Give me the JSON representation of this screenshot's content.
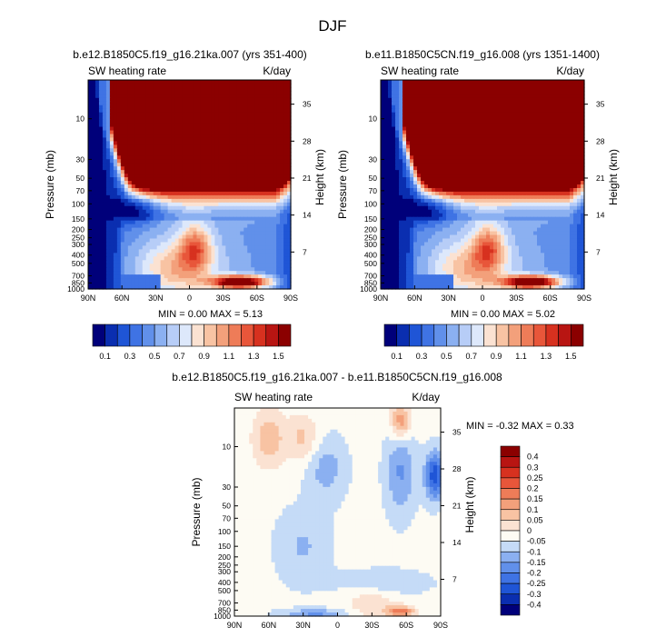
{
  "page_title": "DJF",
  "colors": {
    "palette": [
      "#00007a",
      "#0a2eb0",
      "#1f55d6",
      "#3f73e4",
      "#6190ea",
      "#8bb0f1",
      "#b7cdf7",
      "#dde8fb",
      "#fbe2d2",
      "#f8c3a3",
      "#f3a07b",
      "#ee7c58",
      "#e8563a",
      "#d7311f",
      "#b81512",
      "#8b0000"
    ]
  },
  "chart_data": [
    {
      "type": "heatmap",
      "title": "b.e12.B1850C5.f19_g16.21ka.007 (yrs 351-400)",
      "variable_label": "SW heating rate",
      "units_label": "K/day",
      "ylabel": "Pressure (mb)",
      "ylabel_right": "Height (km)",
      "xlabel": "",
      "x_ticks": [
        "90N",
        "60N",
        "30N",
        "0",
        "30S",
        "60S",
        "90S"
      ],
      "y_ticks": [
        "10",
        "30",
        "50",
        "70",
        "100",
        "150",
        "200",
        "250",
        "300",
        "400",
        "500",
        "700",
        "850",
        "1000"
      ],
      "y_ticks_right": [
        "35",
        "28",
        "21",
        "14",
        "7"
      ],
      "x_range": [
        "90N",
        "90S"
      ],
      "y_range_mb": [
        3.5,
        1000
      ],
      "y_scale": "log",
      "stats_text": "MIN =   0.00   MAX =   5.13",
      "min": 0.0,
      "max": 5.13,
      "features": {
        "stratopause_shift": 0,
        "lower_max_shift": 0,
        "variant": 0
      },
      "colorbar": {
        "orientation": "horizontal",
        "labels": [
          "0.1",
          "0.3",
          "0.5",
          "0.7",
          "0.9",
          "1.1",
          "1.3",
          "1.5"
        ],
        "levels": [
          0.1,
          0.2,
          0.3,
          0.4,
          0.5,
          0.6,
          0.7,
          0.8,
          0.9,
          1.0,
          1.1,
          1.2,
          1.3,
          1.4,
          1.5
        ]
      }
    },
    {
      "type": "heatmap",
      "title": "b.e11.B1850C5CN.f19_g16.008 (yrs 1351-1400)",
      "variable_label": "SW heating rate",
      "units_label": "K/day",
      "ylabel": "Pressure (mb)",
      "ylabel_right": "Height (km)",
      "xlabel": "",
      "x_ticks": [
        "90N",
        "60N",
        "30N",
        "0",
        "30S",
        "60S",
        "90S"
      ],
      "y_ticks": [
        "10",
        "30",
        "50",
        "70",
        "100",
        "150",
        "200",
        "250",
        "300",
        "400",
        "500",
        "700",
        "850",
        "1000"
      ],
      "y_ticks_right": [
        "35",
        "28",
        "21",
        "14",
        "7"
      ],
      "x_range": [
        "90N",
        "90S"
      ],
      "y_range_mb": [
        3.5,
        1000
      ],
      "y_scale": "log",
      "stats_text": "MIN =   0.00   MAX =   5.02",
      "min": 0.0,
      "max": 5.02,
      "features": {
        "stratopause_shift": 0,
        "lower_max_shift": 0,
        "variant": 1
      },
      "colorbar": {
        "orientation": "horizontal",
        "labels": [
          "0.1",
          "0.3",
          "0.5",
          "0.7",
          "0.9",
          "1.1",
          "1.3",
          "1.5"
        ],
        "levels": [
          0.1,
          0.2,
          0.3,
          0.4,
          0.5,
          0.6,
          0.7,
          0.8,
          0.9,
          1.0,
          1.1,
          1.2,
          1.3,
          1.4,
          1.5
        ]
      }
    },
    {
      "type": "heatmap",
      "title": "b.e12.B1850C5.f19_g16.21ka.007 - b.e11.B1850C5CN.f19_g16.008",
      "variable_label": "SW heating rate",
      "units_label": "K/day",
      "ylabel": "Pressure (mb)",
      "ylabel_right": "Height (km)",
      "xlabel": "",
      "x_ticks": [
        "90N",
        "60N",
        "30N",
        "0",
        "30S",
        "60S",
        "90S"
      ],
      "y_ticks": [
        "10",
        "30",
        "50",
        "70",
        "100",
        "150",
        "200",
        "250",
        "300",
        "400",
        "500",
        "700",
        "850",
        "1000"
      ],
      "y_ticks_right": [
        "35",
        "28",
        "21",
        "14",
        "7"
      ],
      "x_range": [
        "90N",
        "90S"
      ],
      "y_range_mb": [
        3.5,
        1000
      ],
      "y_scale": "log",
      "stats_text": "MIN =  -0.32   MAX =   0.33",
      "min": -0.32,
      "max": 0.33,
      "colorbar": {
        "orientation": "vertical",
        "labels": [
          "0.4",
          "0.3",
          "0.25",
          "0.2",
          "0.15",
          "0.1",
          "0.05",
          "0",
          "-0.05",
          "-0.1",
          "-0.15",
          "-0.2",
          "-0.25",
          "-0.3",
          "-0.4"
        ],
        "levels": [
          0.4,
          0.3,
          0.25,
          0.2,
          0.15,
          0.1,
          0.05,
          0,
          -0.05,
          -0.1,
          -0.15,
          -0.2,
          -0.25,
          -0.3,
          -0.4
        ]
      }
    }
  ]
}
